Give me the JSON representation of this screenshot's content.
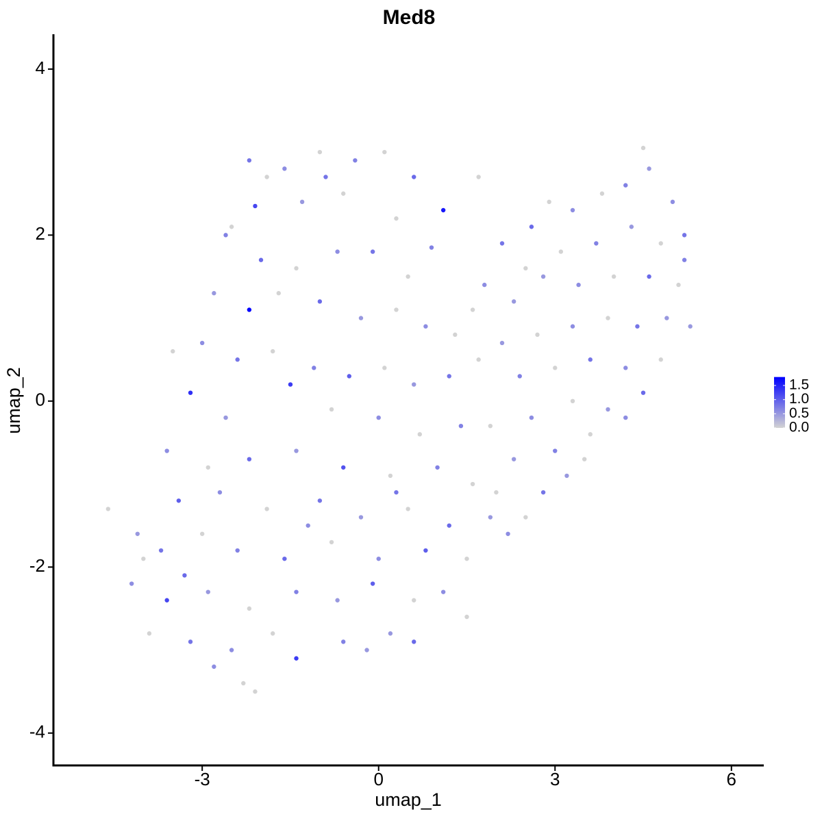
{
  "chart_data": {
    "type": "scatter",
    "title": "Med8",
    "x_label": "umap_1",
    "y_label": "umap_2",
    "xlim": [
      -5.53,
      6.55
    ],
    "ylim": [
      -4.39,
      4.42
    ],
    "xticks": [
      -3,
      0,
      3,
      6
    ],
    "yticks": [
      -4,
      -2,
      0,
      2,
      4
    ],
    "color_low": "#d3d3d3",
    "color_high": "#0000ff",
    "colorbar_ticks": [
      {
        "value": 0,
        "label": "0.0"
      },
      {
        "value": 0.5,
        "label": "0.5"
      },
      {
        "value": 1,
        "label": "1.0"
      },
      {
        "value": 1.5,
        "label": "1.5"
      }
    ],
    "x": [
      -2.2,
      -1.6,
      -1.0,
      -0.4,
      0.1,
      0.6,
      1.1,
      -2.1,
      -1.3,
      -0.6,
      -2.6,
      -2.0,
      -1.4,
      -0.7,
      -0.1,
      0.5,
      0.9,
      -2.8,
      -2.2,
      -1.7,
      -1.0,
      -0.3,
      0.3,
      0.8,
      1.3,
      -3.0,
      -2.4,
      -1.8,
      -1.1,
      -0.5,
      0.1,
      0.6,
      1.2,
      -3.2,
      -2.6,
      -1.5,
      -0.8,
      0.0,
      0.7,
      1.4,
      -3.6,
      -2.9,
      -2.2,
      -1.4,
      -0.6,
      0.2,
      1.0,
      1.6,
      -3.4,
      -2.7,
      -1.9,
      -1.0,
      -0.3,
      0.5,
      1.2,
      1.9,
      -4.6,
      -4.1,
      -3.7,
      -3.0,
      -2.4,
      -1.6,
      -0.8,
      0.0,
      0.8,
      1.5,
      2.2,
      -4.2,
      -3.6,
      -2.9,
      -2.2,
      -1.4,
      -0.7,
      -0.1,
      0.6,
      1.1,
      -3.9,
      -3.2,
      -2.5,
      -1.8,
      -1.4,
      -0.6,
      0.2,
      0.6,
      -2.3,
      -2.8,
      -2.1,
      1.7,
      2.1,
      2.5,
      1.8,
      2.3,
      1.6,
      2.6,
      2.9,
      3.3,
      3.8,
      4.2,
      4.6,
      4.5,
      5.0,
      5.2,
      4.8,
      4.3,
      3.7,
      3.1,
      2.8,
      3.4,
      4.0,
      4.6,
      5.1,
      4.9,
      4.4,
      3.9,
      3.3,
      2.7,
      2.1,
      1.7,
      2.4,
      3.0,
      3.6,
      4.2,
      4.8,
      5.3,
      4.5,
      3.9,
      3.3,
      2.6,
      1.9,
      2.3,
      3.0,
      3.6,
      4.2,
      2.8,
      2.0,
      3.2,
      3.5,
      2.5,
      -3.5,
      -2.5,
      -0.9,
      0.3,
      -1.9,
      5.2,
      -4.0,
      -3.3,
      -0.2,
      1.5,
      -1.2,
      0.3
    ],
    "values": [
      2.9,
      2.8,
      3.0,
      2.9,
      3.0,
      2.7,
      2.3,
      2.35,
      2.4,
      2.5,
      2.0,
      1.7,
      1.6,
      1.8,
      1.8,
      1.5,
      1.85,
      1.3,
      1.1,
      1.3,
      1.2,
      1.0,
      1.1,
      0.9,
      0.8,
      0.7,
      0.5,
      0.6,
      0.4,
      0.3,
      0.4,
      0.2,
      0.3,
      0.1,
      -0.2,
      0.2,
      -0.1,
      -0.2,
      -0.4,
      -0.3,
      -0.6,
      -0.8,
      -0.7,
      -0.6,
      -0.8,
      -0.9,
      -0.8,
      -1.0,
      -1.2,
      -1.1,
      -1.3,
      -1.2,
      -1.4,
      -1.3,
      -1.5,
      -1.4,
      -1.3,
      -1.6,
      -1.8,
      -1.6,
      -1.8,
      -1.9,
      -1.7,
      -1.9,
      -1.8,
      -1.9,
      -1.6,
      -2.2,
      -2.4,
      -2.3,
      -2.5,
      -2.3,
      -2.4,
      -2.2,
      -2.4,
      -2.3,
      -2.8,
      -2.9,
      -3.0,
      -2.8,
      -3.1,
      -2.9,
      -2.8,
      -2.9,
      -3.4,
      -3.2,
      -3.5,
      2.7,
      1.9,
      1.6,
      1.4,
      1.2,
      1.1,
      2.1,
      2.4,
      2.3,
      2.5,
      2.6,
      2.8,
      3.05,
      2.4,
      2.0,
      1.9,
      2.1,
      1.9,
      1.8,
      1.5,
      1.4,
      1.5,
      1.5,
      1.4,
      1.0,
      0.9,
      1.0,
      0.9,
      0.8,
      0.7,
      0.5,
      0.3,
      0.4,
      0.5,
      0.4,
      0.5,
      0.9,
      0.1,
      -0.1,
      0.0,
      -0.2,
      -0.3,
      -0.7,
      -0.6,
      -0.4,
      -0.2,
      -1.1,
      -1.1,
      -0.9,
      -0.7,
      -1.4,
      0.6,
      2.1,
      2.7,
      2.2,
      2.7,
      1.7,
      -1.9,
      -2.1,
      -3.0,
      -2.6,
      -1.5,
      -1.1
    ],
    "expression": [
      0.8,
      0.6,
      0,
      0.7,
      0,
      0.9,
      1.6,
      1.2,
      0.5,
      0,
      0.7,
      0.9,
      0,
      0.6,
      0.8,
      0,
      0.7,
      0.5,
      1.8,
      0,
      0.9,
      0.5,
      0,
      0.6,
      0,
      0.6,
      0.8,
      0,
      0.7,
      1.0,
      0,
      0.5,
      0.8,
      1.4,
      0.5,
      1.3,
      0,
      0.6,
      0,
      0.7,
      0.6,
      0,
      0.9,
      0.5,
      1.1,
      0,
      0.7,
      0,
      1.0,
      0.6,
      0,
      0.8,
      0.5,
      0,
      0.9,
      0.5,
      0,
      0.5,
      0.8,
      0,
      0.7,
      0.9,
      0,
      0.6,
      1.0,
      0,
      0.6,
      0.6,
      1.2,
      0.5,
      0,
      0.7,
      0.5,
      1.0,
      0,
      0.6,
      0,
      0.8,
      0.6,
      0,
      1.3,
      0.7,
      0.5,
      0.9,
      0,
      0.6,
      0,
      0,
      0.8,
      0,
      0.6,
      0.5,
      0,
      0.9,
      0,
      0.6,
      0,
      0.7,
      0.5,
      0,
      0.6,
      0.8,
      0,
      0.5,
      0.7,
      0,
      0.5,
      0.6,
      0,
      0.9,
      0,
      0.5,
      0.8,
      0,
      0.6,
      0,
      0.5,
      0,
      0.7,
      0,
      0.8,
      0.6,
      0,
      0.5,
      0.9,
      0.5,
      0,
      0.6,
      0,
      0.5,
      0.7,
      0,
      0.6,
      0.8,
      0,
      0.5,
      0,
      0,
      0,
      0,
      0.8,
      0,
      0,
      0.7,
      0,
      0.9,
      0.5,
      0,
      0.6,
      0.8
    ]
  }
}
